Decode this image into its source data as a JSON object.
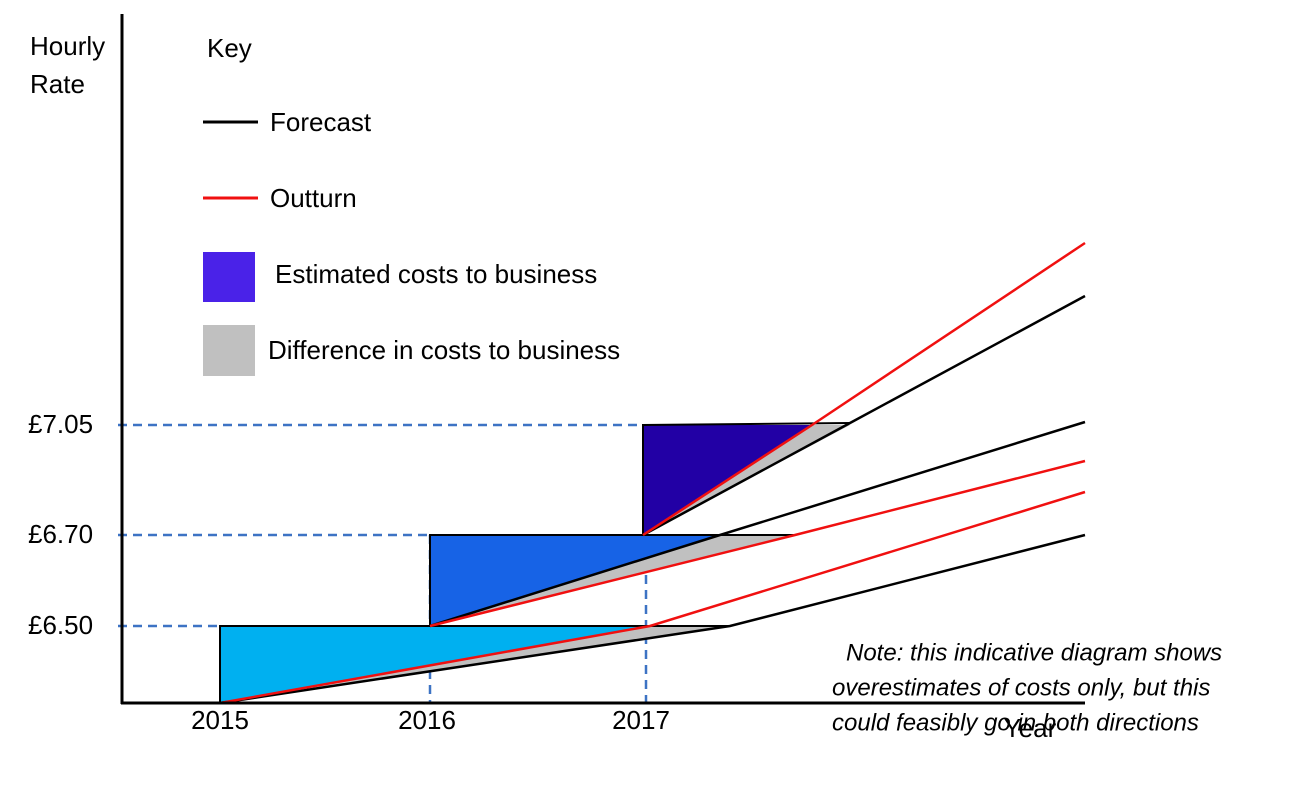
{
  "axis": {
    "y_label_lines": [
      "Hourly",
      "Rate"
    ],
    "x_label": "Year",
    "y_ticks": [
      "£7.05",
      "£6.70",
      "£6.50"
    ],
    "x_ticks": [
      "2015",
      "2016",
      "2017"
    ]
  },
  "key": {
    "title": "Key",
    "items": [
      "Forecast",
      "Outturn",
      "Estimated costs to business",
      "Difference in costs to business"
    ]
  },
  "note": {
    "lines": [
      "Note: this indicative diagram shows",
      "overestimates of costs only, but this",
      "could feasibly go in both directions"
    ]
  }
}
